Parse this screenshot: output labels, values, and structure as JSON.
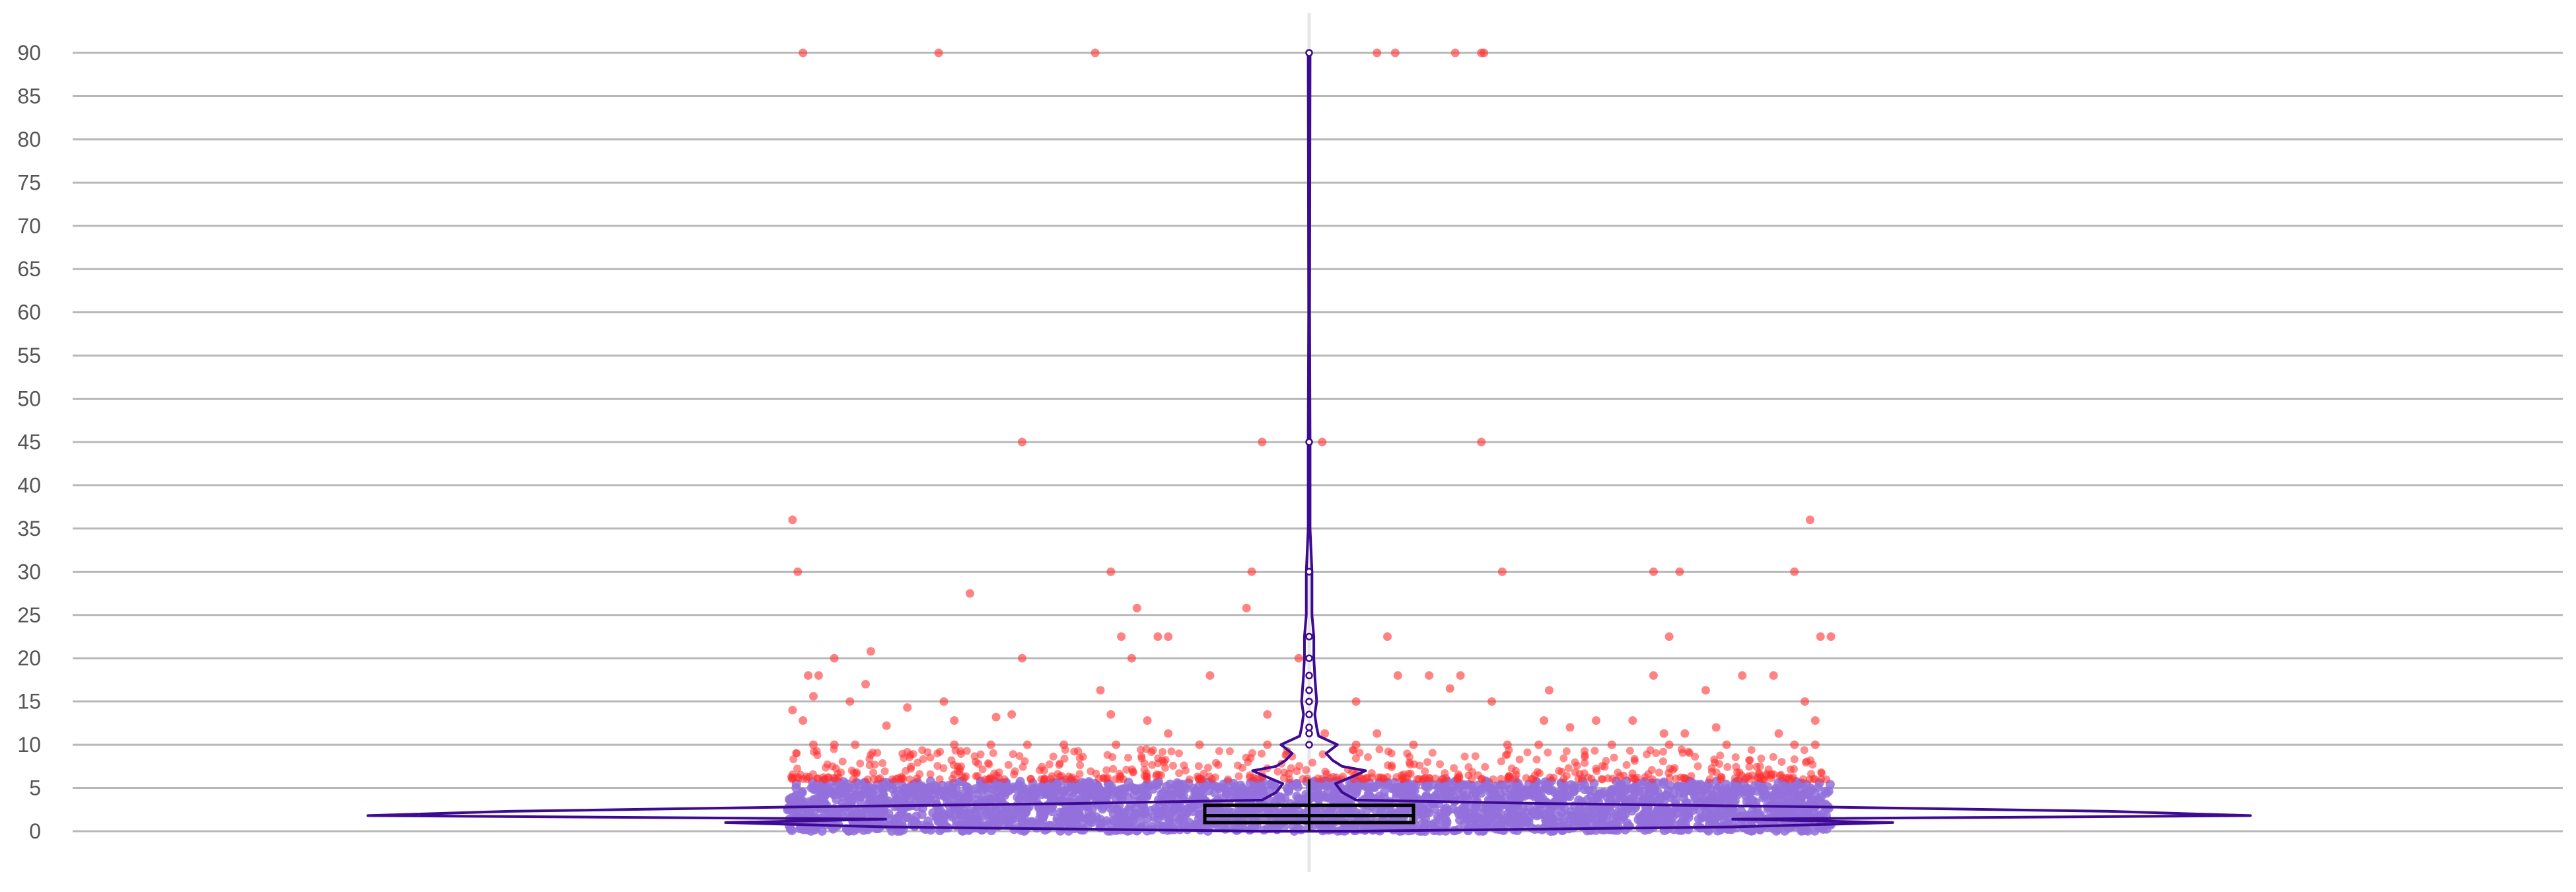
{
  "chart_data": {
    "type": "violin",
    "title": "",
    "xlabel": "",
    "ylabel": "",
    "ylim": [
      0,
      90
    ],
    "yticks": [
      0,
      5,
      10,
      15,
      20,
      25,
      30,
      35,
      40,
      45,
      50,
      55,
      60,
      65,
      70,
      75,
      80,
      85,
      90
    ],
    "grid": "horizontal",
    "legend": "none",
    "colors": {
      "grid": "#b8b8b8",
      "center_line": "#e6e6e6",
      "violin": "#3d0a91",
      "inlier_points": "#9370db",
      "outlier_points": "#ff3030",
      "box": "#000000"
    },
    "box": {
      "q1": 1.0,
      "median": 1.8,
      "q3": 3.0,
      "whisker_low": 0.0,
      "whisker_high": 6.0,
      "max": 90.0
    },
    "violin_density": [
      [
        0,
        0.05
      ],
      [
        0.5,
        0.45
      ],
      [
        1.0,
        0.62
      ],
      [
        1.4,
        0.45
      ],
      [
        1.8,
        1.0
      ],
      [
        2.3,
        0.85
      ],
      [
        2.8,
        0.55
      ],
      [
        3.2,
        0.25
      ],
      [
        3.6,
        0.05
      ],
      [
        4.5,
        0.035
      ],
      [
        5.5,
        0.028
      ],
      [
        6.5,
        0.05
      ],
      [
        7.0,
        0.06
      ],
      [
        7.5,
        0.035
      ],
      [
        8.2,
        0.025
      ],
      [
        9.0,
        0.018
      ],
      [
        10.0,
        0.03
      ],
      [
        11.0,
        0.01
      ],
      [
        12.0,
        0.008
      ],
      [
        13.5,
        0.006
      ],
      [
        15.0,
        0.008
      ],
      [
        18.0,
        0.006
      ],
      [
        20.0,
        0.005
      ],
      [
        22.5,
        0.005
      ],
      [
        25.0,
        0.003
      ],
      [
        30.0,
        0.003
      ],
      [
        35.0,
        0.001
      ],
      [
        45.0,
        0.001
      ],
      [
        60.0,
        0.0005
      ],
      [
        90.0,
        0.001
      ]
    ],
    "inlier_range": [
      0,
      5.8
    ],
    "inlier_count": 2600,
    "outlier_points": [
      [
        -0.97,
        90
      ],
      [
        -0.71,
        90
      ],
      [
        -0.41,
        90
      ],
      [
        0.13,
        90
      ],
      [
        0.165,
        90
      ],
      [
        0.28,
        90
      ],
      [
        0.33,
        90
      ],
      [
        0.335,
        90
      ],
      [
        -0.55,
        45
      ],
      [
        -0.09,
        45
      ],
      [
        0.025,
        45
      ],
      [
        0.33,
        45
      ],
      [
        -0.99,
        36
      ],
      [
        0.96,
        36
      ],
      [
        -0.98,
        30
      ],
      [
        -0.38,
        30
      ],
      [
        -0.11,
        30
      ],
      [
        0.37,
        30
      ],
      [
        0.66,
        30
      ],
      [
        0.71,
        30
      ],
      [
        0.93,
        30
      ],
      [
        -0.65,
        27.5
      ],
      [
        -0.12,
        25.8
      ],
      [
        -0.33,
        25.8
      ],
      [
        -0.36,
        22.5
      ],
      [
        -0.29,
        22.5
      ],
      [
        -0.27,
        22.5
      ],
      [
        0.15,
        22.5
      ],
      [
        0.69,
        22.5
      ],
      [
        0.98,
        22.5
      ],
      [
        1.0,
        22.5
      ],
      [
        -0.84,
        20.8
      ],
      [
        -0.91,
        20
      ],
      [
        -0.55,
        20
      ],
      [
        -0.34,
        20
      ],
      [
        -0.02,
        20
      ],
      [
        -0.96,
        18
      ],
      [
        -0.94,
        18
      ],
      [
        -0.19,
        18
      ],
      [
        0.17,
        18
      ],
      [
        0.23,
        18
      ],
      [
        0.29,
        18
      ],
      [
        0.66,
        18
      ],
      [
        0.83,
        18
      ],
      [
        0.89,
        18
      ],
      [
        -0.85,
        17
      ],
      [
        -0.4,
        16.3
      ],
      [
        0.46,
        16.3
      ],
      [
        0.76,
        16.3
      ],
      [
        0.27,
        16.5
      ],
      [
        -0.95,
        15.6
      ],
      [
        -0.88,
        15
      ],
      [
        -0.7,
        15
      ],
      [
        0.09,
        15
      ],
      [
        0.35,
        15
      ],
      [
        0.95,
        15
      ],
      [
        -0.77,
        14.3
      ],
      [
        -0.99,
        14
      ],
      [
        -0.57,
        13.5
      ],
      [
        -0.6,
        13.2
      ],
      [
        -0.38,
        13.5
      ],
      [
        -0.08,
        13.5
      ],
      [
        -0.97,
        12.8
      ],
      [
        -0.68,
        12.8
      ],
      [
        -0.31,
        12.8
      ],
      [
        0.45,
        12.8
      ],
      [
        0.55,
        12.8
      ],
      [
        0.62,
        12.8
      ],
      [
        0.97,
        12.8
      ],
      [
        -0.81,
        12.2
      ],
      [
        0.5,
        12
      ],
      [
        0.78,
        12
      ],
      [
        -0.27,
        11.3
      ],
      [
        0.03,
        11.3
      ],
      [
        0.13,
        11.3
      ],
      [
        0.68,
        11.3
      ],
      [
        0.72,
        11.3
      ],
      [
        0.9,
        11.3
      ],
      [
        -0.95,
        10
      ],
      [
        -0.91,
        10
      ],
      [
        -0.87,
        10
      ],
      [
        -0.68,
        10
      ],
      [
        -0.61,
        10
      ],
      [
        -0.54,
        10
      ],
      [
        -0.47,
        10
      ],
      [
        -0.37,
        10
      ],
      [
        -0.21,
        10
      ],
      [
        -0.08,
        10
      ],
      [
        0.09,
        10
      ],
      [
        0.2,
        10
      ],
      [
        0.38,
        10
      ],
      [
        0.44,
        10
      ],
      [
        0.58,
        10
      ],
      [
        0.69,
        10
      ],
      [
        0.8,
        10
      ],
      [
        0.93,
        10
      ],
      [
        0.97,
        10
      ]
    ],
    "outlier_band": [
      6.0,
      9.5
    ],
    "outlier_band_count": 520
  }
}
